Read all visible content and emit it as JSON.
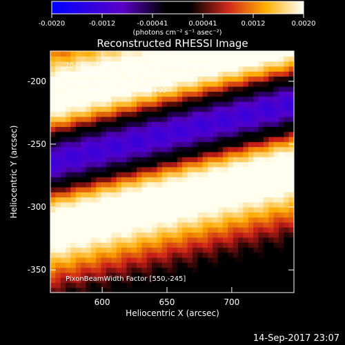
{
  "chart_data": {
    "type": "heatmap",
    "title": "Reconstructed RHESSI Image",
    "xlabel": "Heliocentric X (arcsec)",
    "ylabel": "Heliocentric Y (arcsec)",
    "xlim": [
      560,
      748
    ],
    "ylim": [
      -368,
      -176
    ],
    "x_ticks": [
      600,
      650,
      700
    ],
    "y_ticks": [
      -200,
      -250,
      -300,
      -350
    ],
    "colorbar": {
      "min": -0.002,
      "max": 0.002,
      "ticks": [
        "-0.0020",
        "-0.0012",
        "-0.00041",
        "0.00041",
        "0.0012",
        "0.0020"
      ],
      "label": "(photons cm⁻² s⁻¹ asec⁻²)"
    },
    "annotations": [
      "20-Dec-2014 23:26:40.000 to 23:36:40.000",
      "Detectors: 3F 6F 7F 9F, Att 0",
      "Energy Range: 25.0 - 50.0 keV",
      "Clean     Total counts: 4.96E+03"
    ],
    "bottom_annotation": "PixonBeamWidth Factor [550,-245]",
    "footer_timestamp": "14-Sep-2017 23:07",
    "image_model": {
      "description_units": "arcsec, normalized flux",
      "band_slope": 0.25,
      "center_y_at_x600": -254,
      "positive_band_offsets": [
        48,
        -50
      ],
      "positive_band_widths": [
        28,
        28
      ]
    }
  }
}
